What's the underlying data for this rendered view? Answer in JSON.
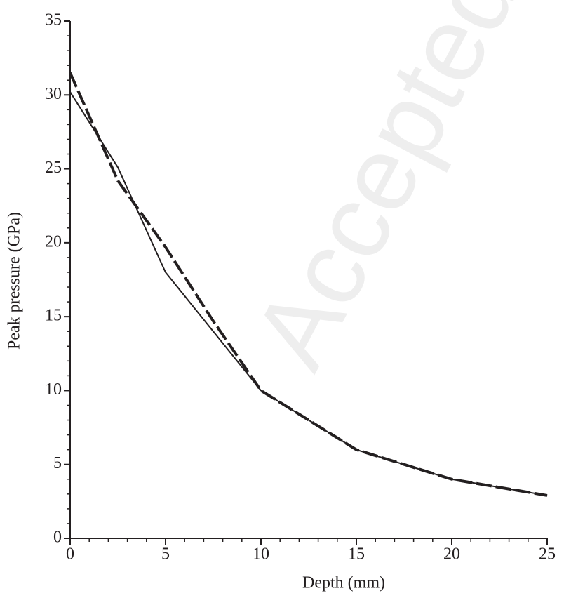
{
  "chart_data": {
    "type": "line",
    "x_label": "Depth (mm)",
    "y_label": "Peak pressure (GPa)",
    "watermark": "Accepted",
    "series": [
      {
        "x": [
          0,
          2.5,
          5,
          10,
          15,
          20,
          25
        ],
        "values": [
          30.2,
          25.1,
          18.0,
          10.0,
          6.0,
          4.0,
          2.9
        ],
        "color": "#231f20",
        "dash": "solid"
      },
      {
        "x": [
          0,
          2.5,
          5,
          7.5,
          10,
          15,
          20,
          25
        ],
        "values": [
          31.5,
          24.2,
          19.7,
          14.7,
          10.0,
          6.0,
          4.0,
          2.9
        ],
        "color": "#231f20",
        "dash": "dashed"
      }
    ],
    "xlim": [
      0,
      25
    ],
    "ylim": [
      0,
      35
    ],
    "xticks": [
      0,
      5,
      10,
      15,
      20,
      25
    ],
    "yticks": [
      0,
      5,
      10,
      15,
      20,
      25,
      30,
      35
    ],
    "xticks_minor": [
      1,
      2,
      3,
      4,
      6,
      7,
      8,
      9,
      11,
      12,
      13,
      14,
      16,
      17,
      18,
      19,
      21,
      22,
      23,
      24
    ],
    "yticks_minor": [
      1,
      2,
      3,
      4,
      6,
      7,
      8,
      9,
      11,
      12,
      13,
      14,
      16,
      17,
      18,
      19,
      21,
      22,
      23,
      24,
      26,
      27,
      28,
      29,
      31,
      32,
      33,
      34
    ]
  }
}
